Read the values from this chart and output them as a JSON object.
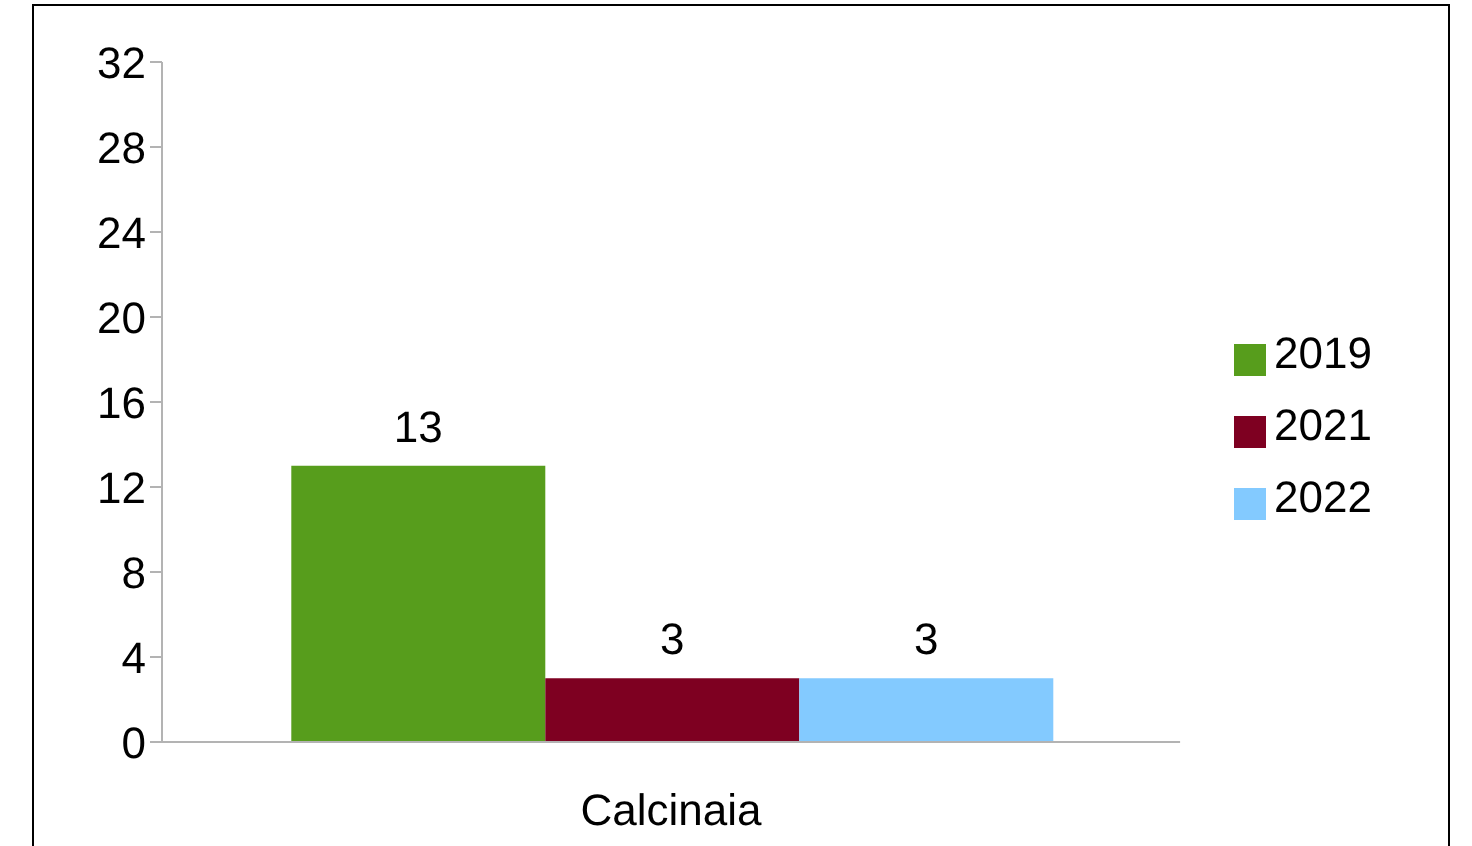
{
  "chart_data": {
    "type": "bar",
    "categories": [
      "Calcinaia"
    ],
    "series": [
      {
        "name": "2019",
        "color": "#579d1c",
        "values": [
          13
        ]
      },
      {
        "name": "2021",
        "color": "#7e0021",
        "values": [
          3
        ]
      },
      {
        "name": "2022",
        "color": "#83caff",
        "values": [
          3
        ]
      }
    ],
    "ylim": [
      0,
      32
    ],
    "yticks": [
      0,
      4,
      8,
      12,
      16,
      20,
      24,
      28,
      32
    ],
    "grid": false,
    "legend": "right",
    "data_labels": true
  }
}
